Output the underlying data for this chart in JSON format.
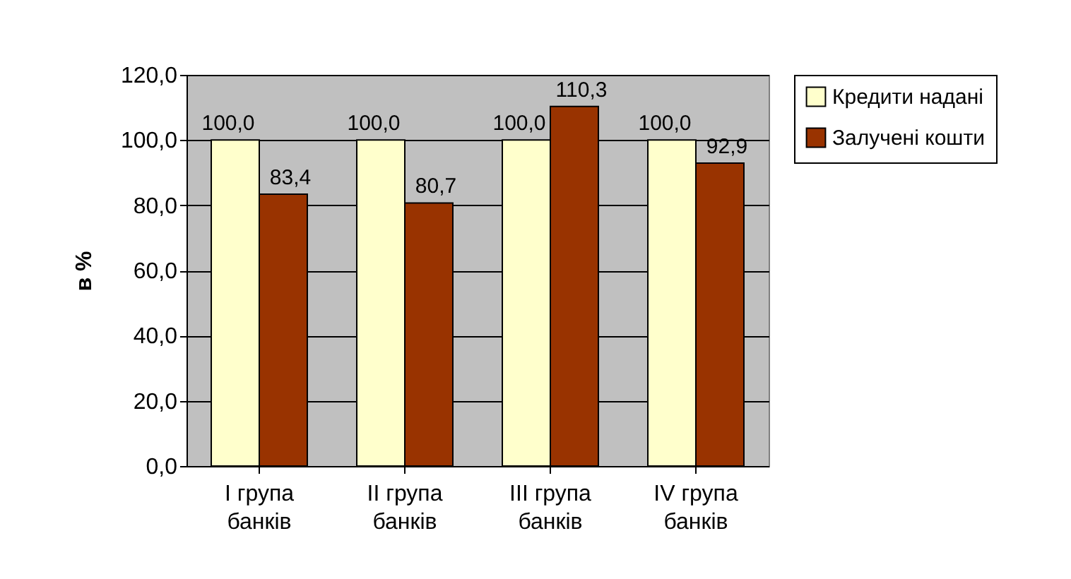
{
  "chart_data": {
    "type": "bar",
    "ylabel": "в %",
    "categories": [
      "I група банків",
      "II група банків",
      "III група банків",
      "IV група банків"
    ],
    "series": [
      {
        "name": "Кредити надані",
        "color": "#ffffcc",
        "values": [
          100.0,
          100.0,
          100.0,
          100.0
        ],
        "value_labels": [
          "100,0",
          "100,0",
          "100,0",
          "100,0"
        ]
      },
      {
        "name": "Залучені кошти",
        "color": "#993300",
        "values": [
          83.4,
          80.7,
          110.3,
          92.9
        ],
        "value_labels": [
          "83,4",
          "80,7",
          "110,3",
          "92,9"
        ]
      }
    ],
    "ylim": [
      0,
      120
    ],
    "yticks": [
      {
        "value": 0,
        "label": "0,0"
      },
      {
        "value": 20,
        "label": "20,0"
      },
      {
        "value": 40,
        "label": "40,0"
      },
      {
        "value": 60,
        "label": "60,0"
      },
      {
        "value": 80,
        "label": "80,0"
      },
      {
        "value": 100,
        "label": "100,0"
      },
      {
        "value": 120,
        "label": "120,0"
      }
    ],
    "grid": "y",
    "legend": "right"
  }
}
